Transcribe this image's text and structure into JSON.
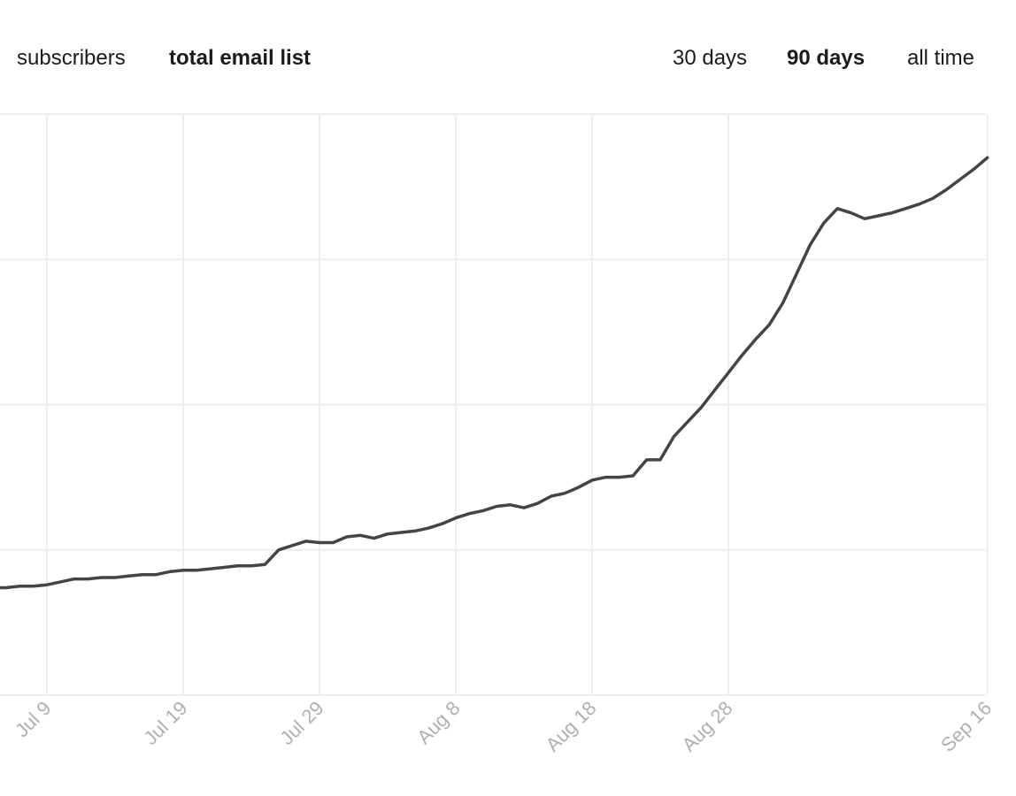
{
  "header": {
    "metric_tabs": [
      {
        "label": "subscribers",
        "active": false
      },
      {
        "label": "total email list",
        "active": true
      }
    ],
    "range_tabs": [
      {
        "label": "30 days",
        "active": false
      },
      {
        "label": "90 days",
        "active": true
      },
      {
        "label": "all time",
        "active": false
      }
    ]
  },
  "colors": {
    "line": "#444444",
    "grid": "#eeeeee",
    "tick_label": "#b0b0b0",
    "text": "#1c1c1c"
  },
  "chart_data": {
    "type": "line",
    "title": "",
    "xlabel": "",
    "ylabel": "",
    "x_tick_labels": [
      "Jul 9",
      "Jul 19",
      "Jul 29",
      "Aug 8",
      "Aug 18",
      "Aug 28",
      "Sep 16"
    ],
    "x_tick_dates": [
      "2023-07-09",
      "2023-07-19",
      "2023-07-29",
      "2023-08-08",
      "2023-08-18",
      "2023-08-28",
      "2023-09-16"
    ],
    "y_tick_labels_visible": false,
    "y_gridlines": 5,
    "ylim": [
      0,
      4
    ],
    "grid": true,
    "legend": "none",
    "series": [
      {
        "x": [
          "2023-07-05",
          "2023-07-06",
          "2023-07-07",
          "2023-07-08",
          "2023-07-09",
          "2023-07-10",
          "2023-07-11",
          "2023-07-12",
          "2023-07-13",
          "2023-07-14",
          "2023-07-15",
          "2023-07-16",
          "2023-07-17",
          "2023-07-18",
          "2023-07-19",
          "2023-07-20",
          "2023-07-21",
          "2023-07-22",
          "2023-07-23",
          "2023-07-24",
          "2023-07-25",
          "2023-07-26",
          "2023-07-27",
          "2023-07-28",
          "2023-07-29",
          "2023-07-30",
          "2023-07-31",
          "2023-08-01",
          "2023-08-02",
          "2023-08-03",
          "2023-08-04",
          "2023-08-05",
          "2023-08-06",
          "2023-08-07",
          "2023-08-08",
          "2023-08-09",
          "2023-08-10",
          "2023-08-11",
          "2023-08-12",
          "2023-08-13",
          "2023-08-14",
          "2023-08-15",
          "2023-08-16",
          "2023-08-17",
          "2023-08-18",
          "2023-08-19",
          "2023-08-20",
          "2023-08-21",
          "2023-08-22",
          "2023-08-23",
          "2023-08-24",
          "2023-08-25",
          "2023-08-26",
          "2023-08-27",
          "2023-08-28",
          "2023-08-29",
          "2023-08-30",
          "2023-08-31",
          "2023-09-01",
          "2023-09-02",
          "2023-09-03",
          "2023-09-04",
          "2023-09-05",
          "2023-09-06",
          "2023-09-07",
          "2023-09-08",
          "2023-09-09",
          "2023-09-10",
          "2023-09-11",
          "2023-09-12",
          "2023-09-13",
          "2023-09-14",
          "2023-09-15",
          "2023-09-16"
        ],
        "values": [
          0.74,
          0.74,
          0.75,
          0.75,
          0.76,
          0.78,
          0.8,
          0.8,
          0.81,
          0.81,
          0.82,
          0.83,
          0.83,
          0.85,
          0.86,
          0.86,
          0.87,
          0.88,
          0.89,
          0.89,
          0.9,
          1.0,
          1.03,
          1.06,
          1.05,
          1.05,
          1.09,
          1.1,
          1.08,
          1.11,
          1.12,
          1.13,
          1.15,
          1.18,
          1.22,
          1.25,
          1.27,
          1.3,
          1.31,
          1.29,
          1.32,
          1.37,
          1.39,
          1.43,
          1.48,
          1.5,
          1.5,
          1.51,
          1.62,
          1.62,
          1.78,
          1.88,
          1.98,
          2.1,
          2.22,
          2.34,
          2.45,
          2.55,
          2.7,
          2.9,
          3.1,
          3.25,
          3.35,
          3.32,
          3.28,
          3.3,
          3.32,
          3.35,
          3.38,
          3.42,
          3.48,
          3.55,
          3.62,
          3.7
        ]
      }
    ]
  }
}
